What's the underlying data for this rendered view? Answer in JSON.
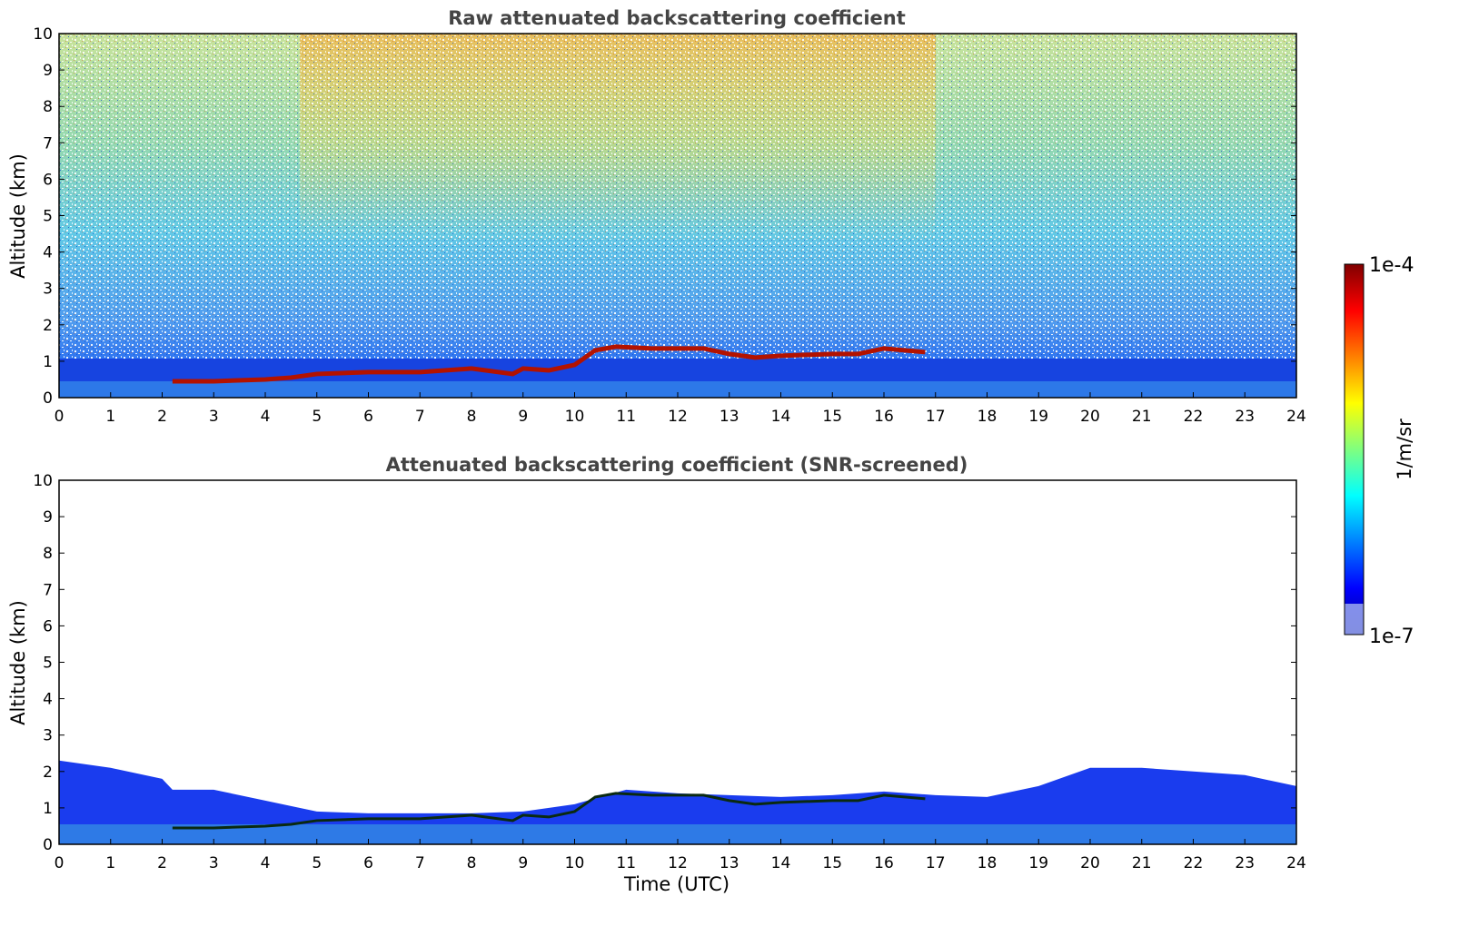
{
  "chart_data": [
    {
      "type": "heatmap",
      "title": "Raw attenuated backscattering coefficient",
      "xlabel": "",
      "ylabel": "Altitude (km)",
      "xlim": [
        0,
        24
      ],
      "ylim": [
        0,
        10
      ],
      "x_ticks": [
        "0",
        "1",
        "2",
        "3",
        "4",
        "5",
        "6",
        "7",
        "8",
        "9",
        "10",
        "11",
        "12",
        "13",
        "14",
        "15",
        "16",
        "17",
        "18",
        "19",
        "20",
        "21",
        "22",
        "23",
        "24"
      ],
      "y_ticks": [
        "0",
        "1",
        "2",
        "3",
        "4",
        "5",
        "6",
        "7",
        "8",
        "9",
        "10"
      ],
      "cloud_layer_km": {
        "x": [
          2.2,
          3.0,
          4.0,
          4.5,
          5.0,
          6.0,
          7.0,
          8.0,
          8.8,
          9.0,
          9.5,
          10.0,
          10.4,
          10.8,
          11.5,
          12.0,
          12.5,
          13.0,
          13.5,
          14.0,
          15.0,
          15.5,
          16.0,
          16.8
        ],
        "y": [
          0.45,
          0.45,
          0.5,
          0.55,
          0.65,
          0.7,
          0.7,
          0.8,
          0.65,
          0.8,
          0.75,
          0.9,
          1.3,
          1.4,
          1.35,
          1.35,
          1.35,
          1.2,
          1.1,
          1.15,
          1.2,
          1.2,
          1.35,
          1.25
        ]
      }
    },
    {
      "type": "heatmap",
      "title": "Attenuated backscattering coefficient (SNR-screened)",
      "xlabel": "Time (UTC)",
      "ylabel": "Altitude (km)",
      "xlim": [
        0,
        24
      ],
      "ylim": [
        0,
        10
      ],
      "x_ticks": [
        "0",
        "1",
        "2",
        "3",
        "4",
        "5",
        "6",
        "7",
        "8",
        "9",
        "10",
        "11",
        "12",
        "13",
        "14",
        "15",
        "16",
        "17",
        "18",
        "19",
        "20",
        "21",
        "22",
        "23",
        "24"
      ],
      "y_ticks": [
        "0",
        "1",
        "2",
        "3",
        "4",
        "5",
        "6",
        "7",
        "8",
        "9",
        "10"
      ],
      "boundary_layer_top_km": {
        "x": [
          0,
          1,
          2,
          2.2,
          3,
          4,
          5,
          6,
          8,
          9,
          10,
          11,
          12,
          13,
          14,
          15,
          16,
          17,
          18,
          19,
          20,
          21,
          22,
          23,
          24
        ],
        "y": [
          2.3,
          2.1,
          1.8,
          1.5,
          1.5,
          1.2,
          0.9,
          0.85,
          0.85,
          0.9,
          1.1,
          1.5,
          1.4,
          1.35,
          1.3,
          1.35,
          1.45,
          1.35,
          1.3,
          1.6,
          2.1,
          2.1,
          2.0,
          1.9,
          1.6
        ]
      }
    }
  ],
  "colorbar": {
    "label": "1/m/sr",
    "max_label": "1e-4",
    "min_label": "1e-7",
    "scale": "log",
    "colormap": "jet"
  }
}
